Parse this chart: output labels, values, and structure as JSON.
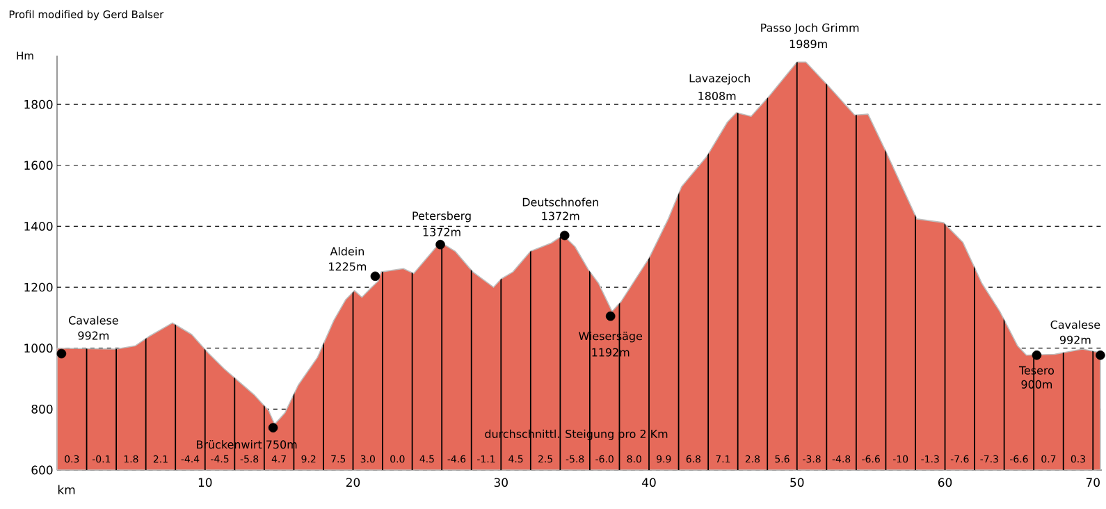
{
  "chart_data": {
    "type": "area",
    "title": "Profil modified by Gerd Balser",
    "xlabel": "km",
    "ylabel": "Hm",
    "xlim": [
      0,
      70.6
    ],
    "ylim": [
      600,
      1960
    ],
    "xticks": [
      {
        "value": 0,
        "label": null
      },
      {
        "value": 2,
        "label": null
      },
      {
        "value": 4,
        "label": null
      },
      {
        "value": 6,
        "label": null
      },
      {
        "value": 8,
        "label": null
      },
      10,
      {
        "value": 12,
        "label": null
      },
      {
        "value": 14,
        "label": null
      },
      {
        "value": 16,
        "label": null
      },
      {
        "value": 18,
        "label": null
      },
      20,
      {
        "value": 22,
        "label": null
      },
      {
        "value": 24,
        "label": null
      },
      {
        "value": 26,
        "label": null
      },
      {
        "value": 28,
        "label": null
      },
      30,
      {
        "value": 32,
        "label": null
      },
      {
        "value": 34,
        "label": null
      },
      {
        "value": 36,
        "label": null
      },
      {
        "value": 38,
        "label": null
      },
      40,
      {
        "value": 42,
        "label": null
      },
      {
        "value": 44,
        "label": null
      },
      {
        "value": 46,
        "label": null
      },
      {
        "value": 48,
        "label": null
      },
      50,
      {
        "value": 52,
        "label": null
      },
      {
        "value": 54,
        "label": null
      },
      {
        "value": 56,
        "label": null
      },
      {
        "value": 58,
        "label": null
      },
      60,
      {
        "value": 62,
        "label": null
      },
      {
        "value": 64,
        "label": null
      },
      {
        "value": 66,
        "label": null
      },
      {
        "value": 68,
        "label": null
      },
      70
    ],
    "yticks": [
      600,
      800,
      1000,
      1200,
      1400,
      1600,
      1800
    ],
    "grid": true,
    "series": [
      {
        "color": "#e66a5a",
        "x": [
          0,
          4.0,
          5.3,
          6.2,
          7.8,
          9.1,
          10.2,
          11.3,
          12.2,
          13.3,
          14.3,
          14.7,
          15.4,
          16.3,
          17.6,
          18.7,
          19.5,
          20.1,
          20.6,
          21.2,
          21.7,
          21.9,
          23.4,
          24.1,
          25.9,
          26.9,
          28.1,
          29.5,
          30.0,
          30.8,
          32.0,
          33.4,
          34.2,
          35.0,
          35.9,
          36.6,
          37.5,
          38.1,
          40.0,
          41.3,
          42.2,
          43.9,
          45.3,
          45.9,
          46.9,
          48.1,
          50.0,
          50.6,
          52.2,
          53.9,
          54.8,
          56.1,
          58.1,
          59.9,
          61.2,
          62.5,
          63.7,
          64.9,
          65.5,
          67.4,
          69.3,
          70.5
        ],
        "values": [
          1000,
          997,
          1008,
          1038,
          1083,
          1045,
          985,
          932,
          894,
          848,
          795,
          750,
          788,
          879,
          970,
          1091,
          1159,
          1189,
          1167,
          1197,
          1220,
          1250,
          1261,
          1245,
          1348,
          1318,
          1250,
          1200,
          1227,
          1250,
          1318,
          1345,
          1371,
          1333,
          1258,
          1212,
          1121,
          1152,
          1295,
          1424,
          1530,
          1629,
          1742,
          1773,
          1761,
          1826,
          1939,
          1939,
          1856,
          1765,
          1768,
          1636,
          1424,
          1412,
          1348,
          1212,
          1121,
          1008,
          977,
          980,
          997,
          985
        ]
      },
      {
        "type": "scatter",
        "color": "#000000",
        "marker": "circle",
        "x": [
          0.3,
          14.6,
          21.5,
          25.9,
          34.3,
          37.4,
          66.2,
          70.5
        ],
        "values": [
          982,
          739,
          1236,
          1340,
          1370,
          1105,
          977,
          977
        ]
      }
    ],
    "annotations": [
      {
        "text": "Cavalese",
        "x": 0.3,
        "y": 982
      },
      {
        "text": "992m",
        "x": 0.3,
        "y": 982
      },
      {
        "text": "Brückenwirt 750m",
        "x": 14.6,
        "y": 739
      },
      {
        "text": "Aldein",
        "x": 21.5,
        "y": 1236
      },
      {
        "text": "1225m",
        "x": 21.5,
        "y": 1236
      },
      {
        "text": "Petersberg",
        "x": 25.9,
        "y": 1340
      },
      {
        "text": "1372m",
        "x": 25.9,
        "y": 1340
      },
      {
        "text": "Deutschnofen",
        "x": 34.3,
        "y": 1370
      },
      {
        "text": "1372m",
        "x": 34.3,
        "y": 1370
      },
      {
        "text": "Wiesersäge",
        "x": 37.4,
        "y": 1105
      },
      {
        "text": "1192m",
        "x": 37.4,
        "y": 1105
      },
      {
        "text": "Lavazejoch",
        "x": 46.0,
        "y": 1773
      },
      {
        "text": "1808m",
        "x": 46.0,
        "y": 1773
      },
      {
        "text": "Passo Joch Grimm",
        "x": 50.3,
        "y": 1939
      },
      {
        "text": "1989m",
        "x": 50.3,
        "y": 1939
      },
      {
        "text": "Tesero",
        "x": 66.2,
        "y": 977
      },
      {
        "text": "900m",
        "x": 66.2,
        "y": 977
      },
      {
        "text": "Cavalese",
        "x": 70.5,
        "y": 977
      },
      {
        "text": "992m",
        "x": 70.5,
        "y": 977
      },
      "durchschnittl. Steigung pro 2 Km",
      "0.3",
      "-0.1",
      "1.8",
      "2.1",
      "-4.4",
      "-4.5",
      "-5.8",
      "4.7",
      "9.2",
      "7.5",
      "3.0",
      "0.0",
      "4.5",
      "-4.6",
      "-1.1",
      "4.5",
      "2.5",
      "-5.8",
      "-6.0",
      "8.0",
      "9.9",
      "6.8",
      "7.1",
      "2.8",
      "5.6",
      "-3.8",
      "-4.8",
      "-6.6",
      "-10",
      "-1.3",
      "-7.6",
      "-7.3",
      "-6.6",
      "0.7",
      "0.3"
    ]
  }
}
